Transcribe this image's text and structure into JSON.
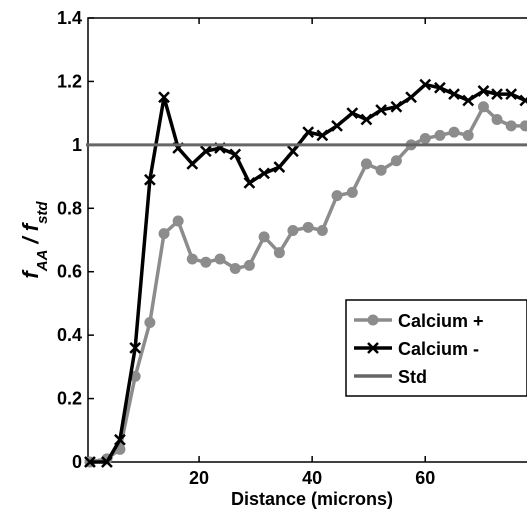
{
  "chart_data": {
    "type": "line",
    "xlabel": "Distance (microns)",
    "ylabel": [
      "f",
      "AA",
      " / f",
      "std"
    ],
    "xlim": [
      0,
      78
    ],
    "ylim": [
      0,
      1.4
    ],
    "xticks": [
      20,
      40,
      60
    ],
    "yticks": [
      0,
      0.2,
      0.4,
      0.6,
      0.8,
      1,
      1.2,
      1.4
    ],
    "legend": "lower right",
    "series": [
      {
        "name": "Calcium +",
        "color": "#8c8c8c",
        "marker": "circle",
        "x": [
          0.7,
          3.7,
          6.0,
          8.7,
          11.3,
          13.8,
          16.3,
          18.8,
          21.2,
          23.7,
          26.4,
          28.9,
          31.5,
          34.2,
          36.6,
          39.3,
          41.8,
          44.4,
          47.1,
          49.6,
          52.2,
          54.9,
          57.5,
          60.0,
          62.6,
          65.1,
          67.6,
          70.3,
          72.7,
          75.2,
          77.7
        ],
        "values": [
          0,
          0.01,
          0.04,
          0.27,
          0.44,
          0.72,
          0.76,
          0.64,
          0.63,
          0.64,
          0.61,
          0.62,
          0.71,
          0.66,
          0.73,
          0.74,
          0.73,
          0.84,
          0.85,
          0.94,
          0.92,
          0.95,
          1.0,
          1.02,
          1.03,
          1.04,
          1.03,
          1.12,
          1.08,
          1.06,
          1.06
        ]
      },
      {
        "name": "Calcium -",
        "color": "#000000",
        "marker": "x",
        "x": [
          0.7,
          3.7,
          6.0,
          8.7,
          11.3,
          13.8,
          16.3,
          18.8,
          21.2,
          23.7,
          26.4,
          28.9,
          31.5,
          34.2,
          36.6,
          39.3,
          41.8,
          44.4,
          47.1,
          49.6,
          52.2,
          54.9,
          57.5,
          60.0,
          62.6,
          65.1,
          67.6,
          70.3,
          72.7,
          75.2,
          77.7
        ],
        "values": [
          0,
          0,
          0.07,
          0.36,
          0.89,
          1.15,
          0.99,
          0.94,
          0.98,
          0.99,
          0.97,
          0.88,
          0.91,
          0.93,
          0.98,
          1.04,
          1.03,
          1.06,
          1.1,
          1.08,
          1.11,
          1.12,
          1.15,
          1.19,
          1.18,
          1.16,
          1.14,
          1.17,
          1.16,
          1.16,
          1.14
        ]
      },
      {
        "name": "Std",
        "color": "#666666",
        "marker": "none",
        "x": [
          0,
          78
        ],
        "values": [
          1,
          1
        ]
      }
    ]
  }
}
